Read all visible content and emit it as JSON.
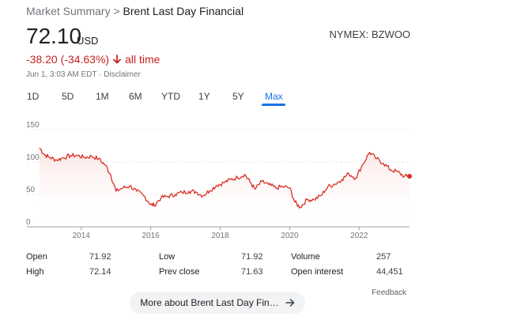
{
  "breadcrumb": {
    "root": "Market Summary",
    "separator": ">",
    "current": "Brent Last Day Financial"
  },
  "quote": {
    "price": "72.10",
    "currency": "USD",
    "exchange_symbol": "NYMEX: BZWOO",
    "change": "-38.20 (-34.63%)",
    "change_arrow_icon": "arrow-down-icon",
    "period": "all time",
    "timestamp": "Jun 1, 3:03 AM EDT · Disclaimer"
  },
  "tabs": [
    {
      "label": "1D"
    },
    {
      "label": "5D"
    },
    {
      "label": "1M"
    },
    {
      "label": "6M"
    },
    {
      "label": "YTD"
    },
    {
      "label": "1Y"
    },
    {
      "label": "5Y"
    },
    {
      "label": "Max",
      "active": true
    }
  ],
  "colors": {
    "negative": "#c5221f",
    "accent": "#1a73e8",
    "line": "#d93025"
  },
  "chart_data": {
    "type": "area",
    "x_ticks": [
      "2014",
      "2016",
      "2018",
      "2020",
      "2022"
    ],
    "y_ticks": [
      0,
      50,
      100,
      150
    ],
    "ylim": [
      0,
      150
    ],
    "xlim": [
      2012.8,
      2023.45
    ],
    "grid": true,
    "x": [
      2012.8,
      2012.95,
      2013.1,
      2013.3,
      2013.5,
      2013.7,
      2013.9,
      2014.1,
      2014.3,
      2014.5,
      2014.7,
      2014.85,
      2015.0,
      2015.2,
      2015.4,
      2015.6,
      2015.8,
      2016.0,
      2016.1,
      2016.3,
      2016.5,
      2016.7,
      2016.9,
      2017.1,
      2017.3,
      2017.5,
      2017.7,
      2017.9,
      2018.1,
      2018.3,
      2018.5,
      2018.7,
      2018.85,
      2019.0,
      2019.2,
      2019.4,
      2019.6,
      2019.8,
      2020.0,
      2020.15,
      2020.3,
      2020.5,
      2020.7,
      2020.9,
      2021.1,
      2021.3,
      2021.5,
      2021.7,
      2021.9,
      2022.1,
      2022.3,
      2022.5,
      2022.7,
      2022.9,
      2023.1,
      2023.3,
      2023.45
    ],
    "values": [
      122,
      111,
      107,
      103,
      107,
      110,
      110,
      107,
      109,
      105,
      95,
      80,
      55,
      60,
      63,
      55,
      48,
      35,
      33,
      45,
      47,
      50,
      53,
      55,
      54,
      48,
      56,
      64,
      68,
      73,
      76,
      81,
      70,
      58,
      70,
      65,
      60,
      62,
      60,
      38,
      30,
      42,
      42,
      48,
      62,
      66,
      73,
      82,
      75,
      96,
      115,
      105,
      98,
      88,
      85,
      78,
      78
    ]
  },
  "stats": {
    "rows": [
      [
        {
          "label": "Open",
          "value": "71.92"
        },
        {
          "label": "Low",
          "value": "71.92"
        },
        {
          "label": "Volume",
          "value": "257"
        }
      ],
      [
        {
          "label": "High",
          "value": "72.14"
        },
        {
          "label": "Prev close",
          "value": "71.63"
        },
        {
          "label": "Open interest",
          "value": "44,451"
        }
      ]
    ]
  },
  "feedback_label": "Feedback",
  "more_button": {
    "label": "More about Brent Last Day Fin…",
    "icon": "arrow-right-icon"
  }
}
